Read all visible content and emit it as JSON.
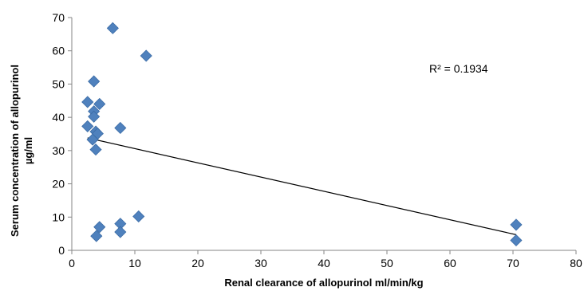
{
  "chart_data": {
    "type": "scatter",
    "xlabel": "Renal clearance of allopurinol ml/min/kg",
    "ylabel_line1": "Serum concentration of allopurinol",
    "ylabel_line2": "µg/ml",
    "xlim": [
      0,
      80
    ],
    "ylim": [
      0,
      70
    ],
    "xticks": [
      "0",
      "10",
      "20",
      "30",
      "40",
      "50",
      "60",
      "70",
      "80"
    ],
    "yticks": [
      "0",
      "10",
      "20",
      "30",
      "40",
      "50",
      "60",
      "70"
    ],
    "grid": false,
    "marker_color": "#4F81BD",
    "series": [
      {
        "points": [
          {
            "x": 6.5,
            "y": 66.8
          },
          {
            "x": 11.8,
            "y": 58.5
          },
          {
            "x": 3.5,
            "y": 50.8
          },
          {
            "x": 2.5,
            "y": 44.6
          },
          {
            "x": 4.4,
            "y": 44.0
          },
          {
            "x": 3.5,
            "y": 41.8
          },
          {
            "x": 3.5,
            "y": 40.2
          },
          {
            "x": 2.5,
            "y": 37.3
          },
          {
            "x": 7.7,
            "y": 36.8
          },
          {
            "x": 3.8,
            "y": 35.7
          },
          {
            "x": 4.1,
            "y": 35.1
          },
          {
            "x": 3.3,
            "y": 33.3
          },
          {
            "x": 3.8,
            "y": 30.3
          },
          {
            "x": 10.6,
            "y": 10.2
          },
          {
            "x": 7.7,
            "y": 8.0
          },
          {
            "x": 4.4,
            "y": 7.0
          },
          {
            "x": 7.7,
            "y": 5.5
          },
          {
            "x": 3.9,
            "y": 4.3
          },
          {
            "x": 70.5,
            "y": 7.7
          },
          {
            "x": 70.5,
            "y": 3.0
          }
        ]
      }
    ],
    "trendline": {
      "x1": 2.5,
      "y1": 33.8,
      "x2": 70.5,
      "y2": 4.7,
      "color": "#000000"
    },
    "annotation": "R² = 0.1934"
  }
}
